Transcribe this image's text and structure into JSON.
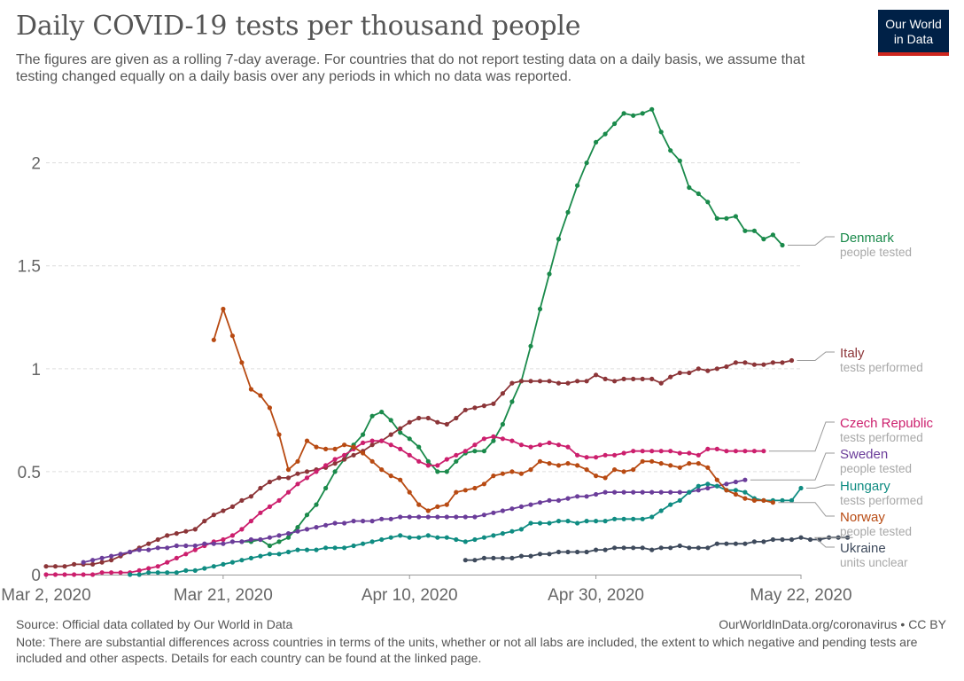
{
  "header": {
    "title": "Daily COVID-19 tests per thousand people",
    "subtitle": "The figures are given as a rolling 7-day average. For countries that do not report testing data on a daily basis, we assume that testing changed equally on a daily basis over any periods in which no data was reported."
  },
  "logo": {
    "line1": "Our World",
    "line2": "in Data",
    "bg_color": "#002147",
    "accent_color": "#ce261e"
  },
  "footer": {
    "source": "Source: Official data collated by Our World in Data",
    "url": "OurWorldInData.org/coronavirus • CC BY",
    "note": "Note: There are substantial differences across countries in terms of the units, whether or not all labs are included, the extent to which negative and pending tests are included and other aspects. Details for each country can be found at the linked page."
  },
  "chart_data": {
    "type": "line",
    "x_start": "2020-03-02",
    "ylim": [
      0,
      2.3
    ],
    "yticks": [
      0,
      0.5,
      1,
      1.5,
      2
    ],
    "ytick_labels": [
      "0",
      "0.5",
      "1",
      "1.5",
      "2"
    ],
    "xticks": [
      "2020-03-02",
      "2020-03-21",
      "2020-04-10",
      "2020-04-30",
      "2020-05-22"
    ],
    "xtick_labels": [
      "Mar 2, 2020",
      "Mar 21, 2020",
      "Apr 10, 2020",
      "Apr 30, 2020",
      "May 22, 2020"
    ],
    "grid": "horizontal dashed",
    "legend": "right",
    "series": [
      {
        "name": "Denmark",
        "unit": "people tested",
        "color": "#1a8a4b",
        "start": "2020-03-23",
        "values": [
          0.16,
          0.16,
          0.17,
          0.14,
          0.16,
          0.18,
          0.23,
          0.29,
          0.34,
          0.42,
          0.5,
          0.56,
          0.63,
          0.68,
          0.77,
          0.79,
          0.75,
          0.69,
          0.66,
          0.62,
          0.55,
          0.5,
          0.5,
          0.55,
          0.59,
          0.6,
          0.6,
          0.65,
          0.73,
          0.84,
          0.94,
          1.11,
          1.29,
          1.46,
          1.63,
          1.76,
          1.89,
          2.0,
          2.1,
          2.14,
          2.19,
          2.24,
          2.23,
          2.24,
          2.26,
          2.15,
          2.06,
          2.01,
          1.88,
          1.85,
          1.81,
          1.73,
          1.73,
          1.74,
          1.67,
          1.67,
          1.63,
          1.65,
          1.6
        ]
      },
      {
        "name": "Italy",
        "unit": "tests performed",
        "color": "#8c3538",
        "start": "2020-03-02",
        "values": [
          0.04,
          0.04,
          0.04,
          0.05,
          0.05,
          0.05,
          0.06,
          0.07,
          0.09,
          0.11,
          0.13,
          0.15,
          0.17,
          0.19,
          0.2,
          0.21,
          0.22,
          0.26,
          0.29,
          0.31,
          0.33,
          0.36,
          0.38,
          0.42,
          0.45,
          0.47,
          0.47,
          0.49,
          0.5,
          0.51,
          0.52,
          0.54,
          0.56,
          0.58,
          0.6,
          0.63,
          0.65,
          0.68,
          0.71,
          0.74,
          0.76,
          0.76,
          0.74,
          0.73,
          0.76,
          0.8,
          0.81,
          0.82,
          0.83,
          0.88,
          0.93,
          0.94,
          0.94,
          0.94,
          0.94,
          0.93,
          0.93,
          0.94,
          0.94,
          0.97,
          0.95,
          0.94,
          0.95,
          0.95,
          0.95,
          0.95,
          0.93,
          0.96,
          0.98,
          0.98,
          1.0,
          0.99,
          1.0,
          1.01,
          1.03,
          1.03,
          1.02,
          1.02,
          1.03,
          1.03,
          1.04
        ]
      },
      {
        "name": "Czech Republic",
        "unit": "tests performed",
        "color": "#cc1f6d",
        "start": "2020-03-02",
        "values": [
          0.0,
          0.0,
          0.0,
          0.0,
          0.0,
          0.0,
          0.01,
          0.01,
          0.01,
          0.01,
          0.02,
          0.03,
          0.04,
          0.06,
          0.08,
          0.1,
          0.12,
          0.14,
          0.16,
          0.17,
          0.19,
          0.22,
          0.26,
          0.3,
          0.33,
          0.36,
          0.4,
          0.44,
          0.47,
          0.5,
          0.53,
          0.56,
          0.58,
          0.61,
          0.64,
          0.65,
          0.65,
          0.63,
          0.61,
          0.58,
          0.55,
          0.53,
          0.53,
          0.56,
          0.58,
          0.6,
          0.63,
          0.66,
          0.67,
          0.66,
          0.65,
          0.63,
          0.62,
          0.63,
          0.64,
          0.63,
          0.62,
          0.58,
          0.57,
          0.57,
          0.58,
          0.58,
          0.59,
          0.6,
          0.6,
          0.6,
          0.6,
          0.6,
          0.59,
          0.59,
          0.58,
          0.61,
          0.61,
          0.6,
          0.6,
          0.6,
          0.6,
          0.6
        ]
      },
      {
        "name": "Sweden",
        "unit": "people tested",
        "color": "#6b3d9a",
        "start": "2020-03-06",
        "values": [
          0.06,
          0.07,
          0.08,
          0.09,
          0.1,
          0.11,
          0.12,
          0.12,
          0.13,
          0.13,
          0.14,
          0.14,
          0.14,
          0.15,
          0.15,
          0.15,
          0.16,
          0.16,
          0.17,
          0.17,
          0.18,
          0.19,
          0.2,
          0.21,
          0.22,
          0.23,
          0.24,
          0.25,
          0.25,
          0.26,
          0.26,
          0.26,
          0.27,
          0.27,
          0.28,
          0.28,
          0.28,
          0.28,
          0.28,
          0.28,
          0.28,
          0.28,
          0.28,
          0.29,
          0.3,
          0.31,
          0.32,
          0.33,
          0.34,
          0.35,
          0.36,
          0.36,
          0.37,
          0.38,
          0.38,
          0.39,
          0.4,
          0.4,
          0.4,
          0.4,
          0.4,
          0.4,
          0.4,
          0.4,
          0.4,
          0.4,
          0.41,
          0.42,
          0.43,
          0.44,
          0.45,
          0.46
        ]
      },
      {
        "name": "Hungary",
        "unit": "tests performed",
        "color": "#0f8c82",
        "start": "2020-03-11",
        "values": [
          0.0,
          0.0,
          0.01,
          0.01,
          0.01,
          0.01,
          0.02,
          0.02,
          0.03,
          0.04,
          0.05,
          0.06,
          0.07,
          0.08,
          0.09,
          0.1,
          0.1,
          0.11,
          0.12,
          0.12,
          0.12,
          0.13,
          0.13,
          0.13,
          0.14,
          0.15,
          0.16,
          0.17,
          0.18,
          0.19,
          0.18,
          0.18,
          0.19,
          0.18,
          0.18,
          0.17,
          0.16,
          0.17,
          0.18,
          0.19,
          0.2,
          0.21,
          0.22,
          0.25,
          0.25,
          0.25,
          0.26,
          0.26,
          0.25,
          0.26,
          0.26,
          0.26,
          0.27,
          0.27,
          0.27,
          0.27,
          0.28,
          0.31,
          0.34,
          0.36,
          0.4,
          0.43,
          0.44,
          0.43,
          0.41,
          0.41,
          0.4,
          0.37,
          0.36,
          0.36,
          0.36,
          0.36,
          0.42
        ]
      },
      {
        "name": "Norway",
        "unit": "people tested",
        "color": "#b84a12",
        "start": "2020-03-20",
        "values": [
          1.14,
          1.29,
          1.16,
          1.03,
          0.9,
          0.87,
          0.81,
          0.68,
          0.51,
          0.55,
          0.65,
          0.62,
          0.61,
          0.61,
          0.63,
          0.62,
          0.59,
          0.55,
          0.51,
          0.48,
          0.46,
          0.4,
          0.34,
          0.31,
          0.33,
          0.34,
          0.4,
          0.41,
          0.42,
          0.44,
          0.48,
          0.49,
          0.5,
          0.49,
          0.51,
          0.55,
          0.54,
          0.53,
          0.54,
          0.53,
          0.51,
          0.48,
          0.47,
          0.51,
          0.5,
          0.51,
          0.55,
          0.55,
          0.54,
          0.53,
          0.52,
          0.54,
          0.54,
          0.52,
          0.46,
          0.41,
          0.39,
          0.37,
          0.36,
          0.36,
          0.35
        ]
      },
      {
        "name": "Ukraine",
        "unit": "units unclear",
        "color": "#3e4a5c",
        "start": "2020-04-16",
        "values": [
          0.07,
          0.07,
          0.08,
          0.08,
          0.08,
          0.08,
          0.09,
          0.09,
          0.1,
          0.1,
          0.11,
          0.11,
          0.11,
          0.11,
          0.12,
          0.12,
          0.13,
          0.13,
          0.13,
          0.13,
          0.12,
          0.13,
          0.13,
          0.14,
          0.13,
          0.13,
          0.13,
          0.15,
          0.15,
          0.15,
          0.15,
          0.16,
          0.16,
          0.17,
          0.17,
          0.17,
          0.18,
          0.17,
          0.17,
          0.18,
          0.18,
          0.18
        ]
      }
    ]
  }
}
